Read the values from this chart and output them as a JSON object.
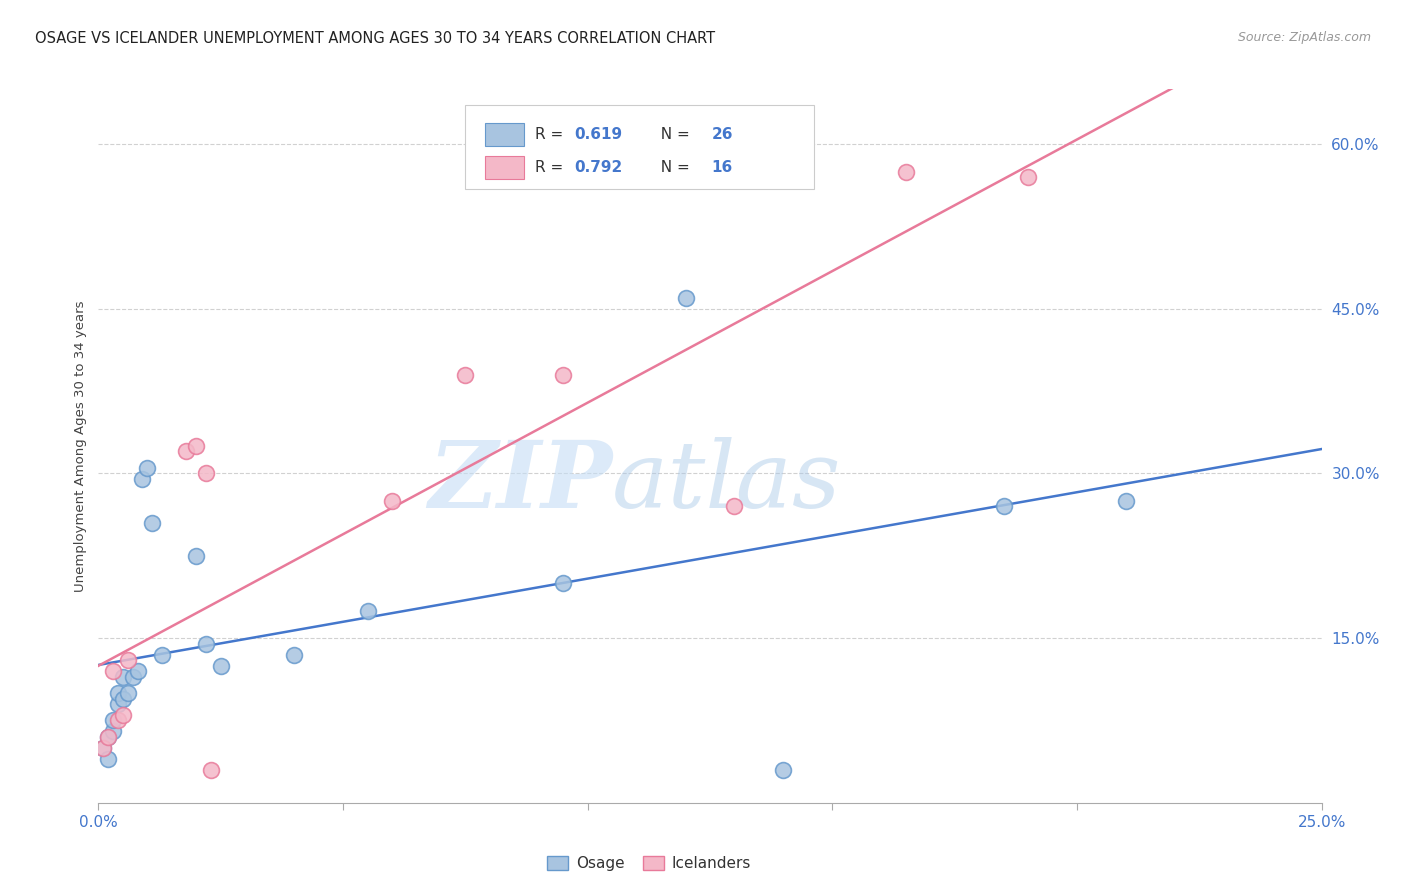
{
  "title": "OSAGE VS ICELANDER UNEMPLOYMENT AMONG AGES 30 TO 34 YEARS CORRELATION CHART",
  "source": "Source: ZipAtlas.com",
  "ylabel": "Unemployment Among Ages 30 to 34 years",
  "xlim": [
    0.0,
    0.25
  ],
  "ylim": [
    0.0,
    0.65
  ],
  "xticks": [
    0.0,
    0.05,
    0.1,
    0.15,
    0.2,
    0.25
  ],
  "yticks": [
    0.15,
    0.3,
    0.45,
    0.6
  ],
  "osage_color": "#a8c4e0",
  "osage_edge": "#6699cc",
  "icelander_color": "#f4b8c8",
  "icelander_edge": "#e87a9a",
  "line_osage": "#4477cc",
  "line_icelander": "#e87a9a",
  "R_osage": 0.619,
  "N_osage": 26,
  "R_icelander": 0.792,
  "N_icelander": 16,
  "osage_x": [
    0.001,
    0.002,
    0.002,
    0.003,
    0.003,
    0.004,
    0.004,
    0.005,
    0.005,
    0.006,
    0.007,
    0.008,
    0.009,
    0.01,
    0.011,
    0.013,
    0.02,
    0.022,
    0.025,
    0.04,
    0.055,
    0.095,
    0.12,
    0.14,
    0.185,
    0.21
  ],
  "osage_y": [
    0.05,
    0.04,
    0.06,
    0.065,
    0.075,
    0.09,
    0.1,
    0.095,
    0.115,
    0.1,
    0.115,
    0.12,
    0.295,
    0.305,
    0.255,
    0.135,
    0.225,
    0.145,
    0.125,
    0.135,
    0.175,
    0.2,
    0.46,
    0.03,
    0.27,
    0.275
  ],
  "icelander_x": [
    0.001,
    0.002,
    0.003,
    0.004,
    0.005,
    0.006,
    0.018,
    0.02,
    0.022,
    0.023,
    0.06,
    0.075,
    0.095,
    0.13,
    0.165,
    0.19
  ],
  "icelander_y": [
    0.05,
    0.06,
    0.12,
    0.075,
    0.08,
    0.13,
    0.32,
    0.325,
    0.3,
    0.03,
    0.275,
    0.39,
    0.39,
    0.27,
    0.575,
    0.57
  ],
  "watermark_zip": "ZIP",
  "watermark_atlas": "atlas",
  "background_color": "#ffffff",
  "grid_color": "#cccccc"
}
